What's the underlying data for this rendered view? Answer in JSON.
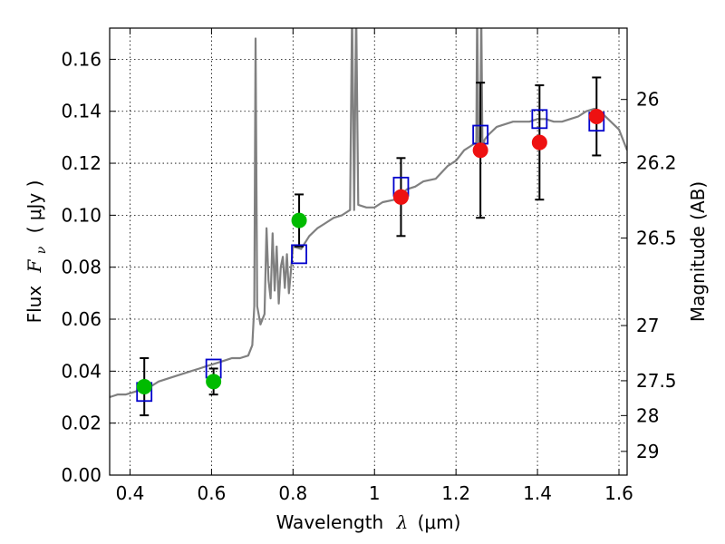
{
  "chart_data": {
    "type": "scatter",
    "xlabel_prefix": "Wavelength",
    "xlabel_symbol": "λ",
    "xlabel_unit": "(μm)",
    "ylabel_prefix": "Flux",
    "ylabel_symbol": "F",
    "ylabel_subscript": "ν",
    "ylabel_unit": "( μJy )",
    "y2label": "Magnitude (AB)",
    "xlim": [
      0.35,
      1.62
    ],
    "ylim": [
      0.0,
      0.172
    ],
    "grid": true,
    "xticks": [
      {
        "value": 0.4,
        "label": "0.4"
      },
      {
        "value": 0.6,
        "label": "0.6"
      },
      {
        "value": 0.8,
        "label": "0.8"
      },
      {
        "value": 1.0,
        "label": "1"
      },
      {
        "value": 1.2,
        "label": "1.2"
      },
      {
        "value": 1.4,
        "label": "1.4"
      },
      {
        "value": 1.6,
        "label": "1.6"
      }
    ],
    "yticks": [
      {
        "value": 0.0,
        "label": "0.00"
      },
      {
        "value": 0.02,
        "label": "0.02"
      },
      {
        "value": 0.04,
        "label": "0.04"
      },
      {
        "value": 0.06,
        "label": "0.06"
      },
      {
        "value": 0.08,
        "label": "0.08"
      },
      {
        "value": 0.1,
        "label": "0.10"
      },
      {
        "value": 0.12,
        "label": "0.12"
      },
      {
        "value": 0.14,
        "label": "0.14"
      },
      {
        "value": 0.16,
        "label": "0.16"
      }
    ],
    "y2ticks": [
      {
        "mag": 26,
        "label": "26"
      },
      {
        "mag": 26.2,
        "label": "26.2"
      },
      {
        "mag": 26.5,
        "label": "26.5"
      },
      {
        "mag": 27,
        "label": "27"
      },
      {
        "mag": 27.5,
        "label": "27.5"
      },
      {
        "mag": 28,
        "label": "28"
      },
      {
        "mag": 29,
        "label": "29"
      }
    ],
    "colors": {
      "spectrum": "#808080",
      "model_box": "#0000cc",
      "green_points": "#00bb00",
      "red_points": "#ee1111",
      "errorbar": "#000000",
      "grid": "#000000"
    },
    "spectrum": {
      "name": "",
      "x": [
        0.35,
        0.37,
        0.39,
        0.41,
        0.43,
        0.45,
        0.47,
        0.49,
        0.51,
        0.53,
        0.55,
        0.57,
        0.59,
        0.61,
        0.63,
        0.65,
        0.67,
        0.69,
        0.7,
        0.705,
        0.708,
        0.712,
        0.72,
        0.73,
        0.735,
        0.74,
        0.745,
        0.75,
        0.755,
        0.76,
        0.765,
        0.77,
        0.775,
        0.78,
        0.785,
        0.79,
        0.795,
        0.8,
        0.82,
        0.84,
        0.86,
        0.88,
        0.9,
        0.92,
        0.93,
        0.94,
        0.945,
        0.95,
        0.955,
        0.96,
        0.98,
        1.0,
        1.02,
        1.05,
        1.08,
        1.1,
        1.12,
        1.15,
        1.18,
        1.2,
        1.22,
        1.24,
        1.25,
        1.252,
        1.255,
        1.26,
        1.262,
        1.265,
        1.27,
        1.28,
        1.3,
        1.32,
        1.34,
        1.36,
        1.38,
        1.4,
        1.42,
        1.44,
        1.46,
        1.48,
        1.5,
        1.52,
        1.54,
        1.56,
        1.58,
        1.6,
        1.62
      ],
      "y": [
        0.03,
        0.031,
        0.031,
        0.032,
        0.033,
        0.034,
        0.036,
        0.037,
        0.038,
        0.039,
        0.04,
        0.041,
        0.042,
        0.043,
        0.044,
        0.045,
        0.045,
        0.046,
        0.05,
        0.065,
        0.168,
        0.065,
        0.058,
        0.062,
        0.095,
        0.075,
        0.068,
        0.093,
        0.071,
        0.088,
        0.066,
        0.08,
        0.084,
        0.072,
        0.085,
        0.07,
        0.079,
        0.088,
        0.087,
        0.092,
        0.095,
        0.097,
        0.099,
        0.1,
        0.101,
        0.102,
        0.18,
        0.102,
        0.18,
        0.104,
        0.103,
        0.103,
        0.105,
        0.106,
        0.11,
        0.111,
        0.113,
        0.114,
        0.119,
        0.121,
        0.125,
        0.127,
        0.128,
        0.18,
        0.128,
        0.13,
        0.18,
        0.124,
        0.129,
        0.131,
        0.134,
        0.135,
        0.136,
        0.136,
        0.136,
        0.137,
        0.137,
        0.136,
        0.136,
        0.137,
        0.138,
        0.14,
        0.141,
        0.139,
        0.136,
        0.133,
        0.125
      ]
    },
    "model_boxes": {
      "x": [
        0.435,
        0.605,
        0.815,
        1.065,
        1.26,
        1.405,
        1.545
      ],
      "y": [
        0.032,
        0.041,
        0.085,
        0.111,
        0.131,
        0.137,
        0.136
      ]
    },
    "observed_points": [
      {
        "x": 0.435,
        "y": 0.034,
        "yerr": 0.011,
        "color": "green"
      },
      {
        "x": 0.605,
        "y": 0.036,
        "yerr": 0.005,
        "color": "green"
      },
      {
        "x": 0.815,
        "y": 0.098,
        "yerr": 0.01,
        "color": "green"
      },
      {
        "x": 1.065,
        "y": 0.107,
        "yerr": 0.015,
        "color": "red"
      },
      {
        "x": 1.26,
        "y": 0.125,
        "yerr": 0.026,
        "color": "red"
      },
      {
        "x": 1.405,
        "y": 0.128,
        "yerr": 0.022,
        "color": "red"
      },
      {
        "x": 1.545,
        "y": 0.138,
        "yerr": 0.015,
        "color": "red"
      }
    ]
  }
}
